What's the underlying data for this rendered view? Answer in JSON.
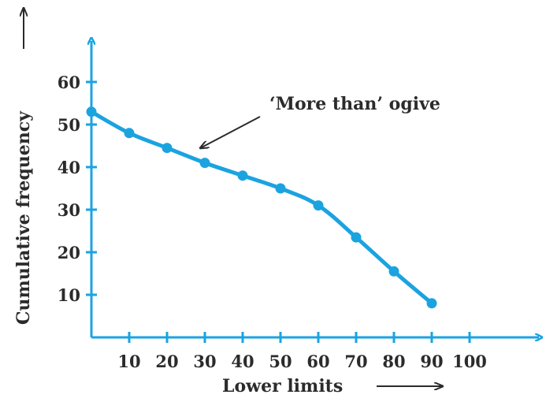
{
  "chart_data": {
    "type": "line",
    "x": [
      0,
      10,
      20,
      30,
      40,
      50,
      60,
      70,
      80,
      90
    ],
    "series": [
      {
        "values": [
          53,
          48,
          44.5,
          41,
          38,
          35,
          31,
          23.5,
          15.5,
          8
        ]
      }
    ],
    "x_ticks": [
      "10",
      "20",
      "30",
      "40",
      "50",
      "60",
      "70",
      "80",
      "90",
      "100"
    ],
    "y_ticks": [
      "10",
      "20",
      "30",
      "40",
      "50",
      "60"
    ],
    "xlabel": "Lower limits",
    "ylabel": "Cumulative frequency",
    "annotation": "‘More than’ ogive",
    "xlim": [
      0,
      100
    ],
    "ylim": [
      0,
      60
    ],
    "grid": false,
    "colors": {
      "line": "#1ba3e0",
      "text": "#2b2b2b",
      "arrow": "#2b2b2b"
    }
  }
}
